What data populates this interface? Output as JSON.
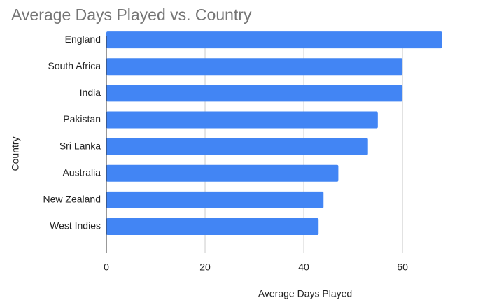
{
  "chart_data": {
    "type": "bar",
    "orientation": "horizontal",
    "title": "Average Days Played vs. Country",
    "x_label": "Average Days Played",
    "y_label": "Country",
    "categories": [
      "England",
      "South Africa",
      "India",
      "Pakistan",
      "Sri Lanka",
      "Australia",
      "New Zealand",
      "West Indies"
    ],
    "values": [
      68,
      60,
      60,
      55,
      53,
      47,
      44,
      43
    ],
    "color": "#4285f4",
    "xlim": [
      0,
      78
    ],
    "xticks": [
      0,
      20,
      40,
      60
    ],
    "grid": true
  }
}
